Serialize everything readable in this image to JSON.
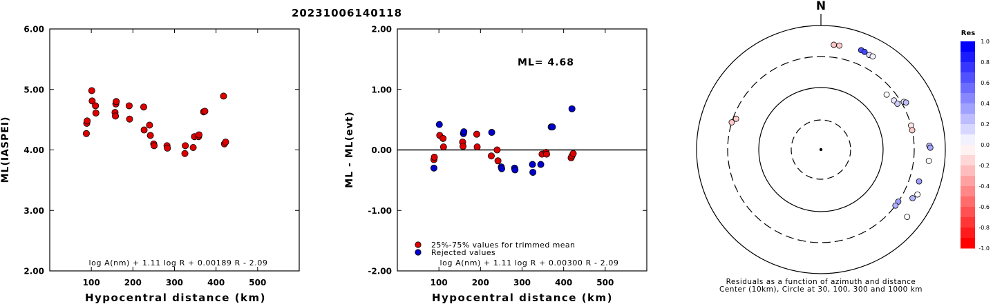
{
  "title": "20231006140118",
  "colors": {
    "red": "#dd0000",
    "blue": "#0000cc",
    "line": "#000000"
  },
  "chart_data": [
    {
      "type": "scatter",
      "id": "left",
      "ylabel": "ML(IASPEI)",
      "xlabel": "Hypocentral distance (km)",
      "xlim": [
        0,
        600
      ],
      "ylim": [
        2.0,
        6.0
      ],
      "x_ticks": [
        "100",
        "200",
        "300",
        "400",
        "500"
      ],
      "x_tick_values": [
        100,
        200,
        300,
        400,
        500
      ],
      "y_ticks": [
        "2.00",
        "3.00",
        "4.00",
        "5.00",
        "6.00"
      ],
      "y_tick_values": [
        2,
        3,
        4,
        5,
        6
      ],
      "formula": "log A(nm) + 1.11 log R + 0.00189 R - 2.09",
      "series": [
        {
          "color": "red",
          "points": [
            [
              88,
              4.27
            ],
            [
              89,
              4.44
            ],
            [
              90,
              4.48
            ],
            [
              101,
              4.98
            ],
            [
              102,
              4.81
            ],
            [
              110,
              4.73
            ],
            [
              111,
              4.61
            ],
            [
              157,
              4.62
            ],
            [
              158,
              4.56
            ],
            [
              159,
              4.76
            ],
            [
              160,
              4.8
            ],
            [
              191,
              4.73
            ],
            [
              192,
              4.51
            ],
            [
              226,
              4.71
            ],
            [
              227,
              4.33
            ],
            [
              240,
              4.41
            ],
            [
              242,
              4.24
            ],
            [
              250,
              4.1
            ],
            [
              251,
              4.07
            ],
            [
              282,
              4.07
            ],
            [
              283,
              4.03
            ],
            [
              325,
              3.94
            ],
            [
              326,
              4.07
            ],
            [
              345,
              4.04
            ],
            [
              348,
              4.22
            ],
            [
              358,
              4.22
            ],
            [
              359,
              4.25
            ],
            [
              370,
              4.63
            ],
            [
              373,
              4.64
            ],
            [
              418,
              4.89
            ],
            [
              420,
              4.1
            ],
            [
              423,
              4.13
            ]
          ]
        }
      ]
    },
    {
      "type": "scatter",
      "id": "middle",
      "ylabel": "ML - ML(evt)",
      "xlabel": "Hypocentral distance (km)",
      "xlim": [
        0,
        600
      ],
      "ylim": [
        -2.0,
        2.0
      ],
      "x_ticks": [
        "100",
        "200",
        "300",
        "400",
        "500"
      ],
      "x_tick_values": [
        100,
        200,
        300,
        400,
        500
      ],
      "y_ticks": [
        "-2.00",
        "-1.00",
        "0.00",
        "1.00",
        "2.00"
      ],
      "y_tick_values": [
        -2,
        -1,
        0,
        1,
        2
      ],
      "annotation": "ML= 4.68",
      "legend": [
        "25%-75% values for trimmed mean",
        "Rejected values"
      ],
      "formula": "log A(nm) + 1.11 log R + 0.00300 R - 2.09",
      "series": [
        {
          "name": "25%-75% values for trimmed mean",
          "color": "red",
          "points": [
            [
              88,
              -0.16
            ],
            [
              89,
              -0.12
            ],
            [
              102,
              0.24
            ],
            [
              110,
              0.19
            ],
            [
              111,
              0.05
            ],
            [
              157,
              0.13
            ],
            [
              158,
              0.06
            ],
            [
              191,
              0.26
            ],
            [
              192,
              0.05
            ],
            [
              226,
              -0.1
            ],
            [
              240,
              0.0
            ],
            [
              242,
              -0.18
            ],
            [
              348,
              -0.07
            ],
            [
              358,
              -0.04
            ],
            [
              359,
              -0.07
            ],
            [
              418,
              -0.13
            ],
            [
              420,
              -0.1
            ],
            [
              423,
              -0.06
            ]
          ]
        },
        {
          "name": "Rejected values",
          "color": "blue",
          "points": [
            [
              88,
              -0.3
            ],
            [
              101,
              0.42
            ],
            [
              159,
              0.27
            ],
            [
              160,
              0.3
            ],
            [
              227,
              0.29
            ],
            [
              250,
              -0.28
            ],
            [
              251,
              -0.31
            ],
            [
              282,
              -0.3
            ],
            [
              283,
              -0.33
            ],
            [
              325,
              -0.24
            ],
            [
              326,
              -0.37
            ],
            [
              345,
              -0.24
            ],
            [
              370,
              0.38
            ],
            [
              373,
              0.38
            ],
            [
              420,
              0.68
            ]
          ]
        }
      ]
    },
    {
      "type": "scatter",
      "id": "polar",
      "north_label": "N",
      "caption_line1": "Residuals as a function of azimuth and distance",
      "caption_line2": "Center (10km), Circle at 30, 100, 300 and 1000 km",
      "colorbar_title": "Res",
      "colorbar_ticks": [
        "1.0",
        "0.8",
        "0.6",
        "0.4",
        "0.2",
        "0.0",
        "-0.2",
        "-0.4",
        "-0.6",
        "-0.8",
        "-1.0"
      ],
      "colorbar_tick_values": [
        1.0,
        0.8,
        0.6,
        0.4,
        0.2,
        0.0,
        -0.2,
        -0.4,
        -0.6,
        -0.8,
        -1.0
      ],
      "rings_km": [
        30,
        100,
        300,
        1000
      ],
      "stations": [
        {
          "azimuth": 7,
          "distance_km": 488,
          "res": -0.23
        },
        {
          "azimuth": 10,
          "distance_km": 488,
          "res": -0.2
        },
        {
          "azimuth": 22,
          "distance_km": 520,
          "res": 0.68
        },
        {
          "azimuth": 24,
          "distance_km": 515,
          "res": 0.72
        },
        {
          "azimuth": 27,
          "distance_km": 500,
          "res": 0.12
        },
        {
          "azimuth": 29,
          "distance_km": 505,
          "res": 0.05
        },
        {
          "azimuth": 50,
          "distance_km": 230,
          "res": 0.0
        },
        {
          "azimuth": 56,
          "distance_km": 250,
          "res": 0.1
        },
        {
          "azimuth": 59,
          "distance_km": 260,
          "res": 0.2
        },
        {
          "azimuth": 60,
          "distance_km": 330,
          "res": 0.12
        },
        {
          "azimuth": 61,
          "distance_km": 350,
          "res": 0.25
        },
        {
          "azimuth": 75,
          "distance_km": 300,
          "res": -0.1
        },
        {
          "azimuth": 78,
          "distance_km": 300,
          "res": -0.2
        },
        {
          "azimuth": 88,
          "distance_km": 540,
          "res": 0.3
        },
        {
          "azimuth": 89,
          "distance_km": 560,
          "res": 0.35
        },
        {
          "azimuth": 96,
          "distance_km": 540,
          "res": 0.02
        },
        {
          "azimuth": 108,
          "distance_km": 440,
          "res": 0.38
        },
        {
          "azimuth": 118,
          "distance_km": 450,
          "res": 0.3
        },
        {
          "azimuth": 124,
          "distance_km": 300,
          "res": 0.38
        },
        {
          "azimuth": 127,
          "distance_km": 300,
          "res": 0.3
        },
        {
          "azimuth": 115,
          "distance_km": 500,
          "res": 0.0
        },
        {
          "azimuth": 128,
          "distance_km": 560,
          "res": 0.0
        },
        {
          "azimuth": 287,
          "distance_km": 300,
          "res": -0.22
        },
        {
          "azimuth": 290,
          "distance_km": 270,
          "res": -0.2
        }
      ]
    }
  ]
}
